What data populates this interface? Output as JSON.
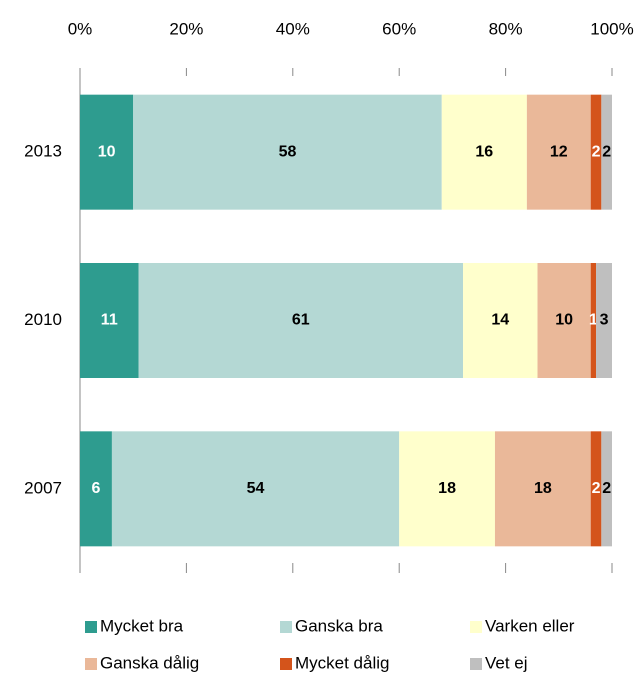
{
  "chart_data": {
    "type": "bar",
    "orientation": "horizontal",
    "stacked": true,
    "categories": [
      "2013",
      "2010",
      "2007"
    ],
    "series": [
      {
        "name": "Mycket bra",
        "color": "#2e9c8f",
        "label_color": "#ffffff",
        "values": [
          10,
          11,
          6
        ]
      },
      {
        "name": "Ganska bra",
        "color": "#b4d8d4",
        "label_color": "#000000",
        "values": [
          58,
          61,
          54
        ]
      },
      {
        "name": "Varken eller",
        "color": "#ffffcc",
        "label_color": "#000000",
        "values": [
          16,
          14,
          18
        ]
      },
      {
        "name": "Ganska dålig",
        "color": "#eab899",
        "label_color": "#000000",
        "values": [
          12,
          10,
          18
        ]
      },
      {
        "name": "Mycket dålig",
        "color": "#d4541b",
        "label_color": "#ffffff",
        "values": [
          2,
          1,
          2
        ]
      },
      {
        "name": "Vet ej",
        "color": "#bfbfbf",
        "label_color": "#000000",
        "values": [
          2,
          3,
          2
        ]
      }
    ],
    "xlim": [
      0,
      100
    ],
    "xticks": [
      {
        "value": 0,
        "label": "0%"
      },
      {
        "value": 20,
        "label": "20%"
      },
      {
        "value": 40,
        "label": "40%"
      },
      {
        "value": 60,
        "label": "60%"
      },
      {
        "value": 80,
        "label": "80%"
      },
      {
        "value": 100,
        "label": "100%"
      }
    ],
    "legend": "bottom"
  }
}
